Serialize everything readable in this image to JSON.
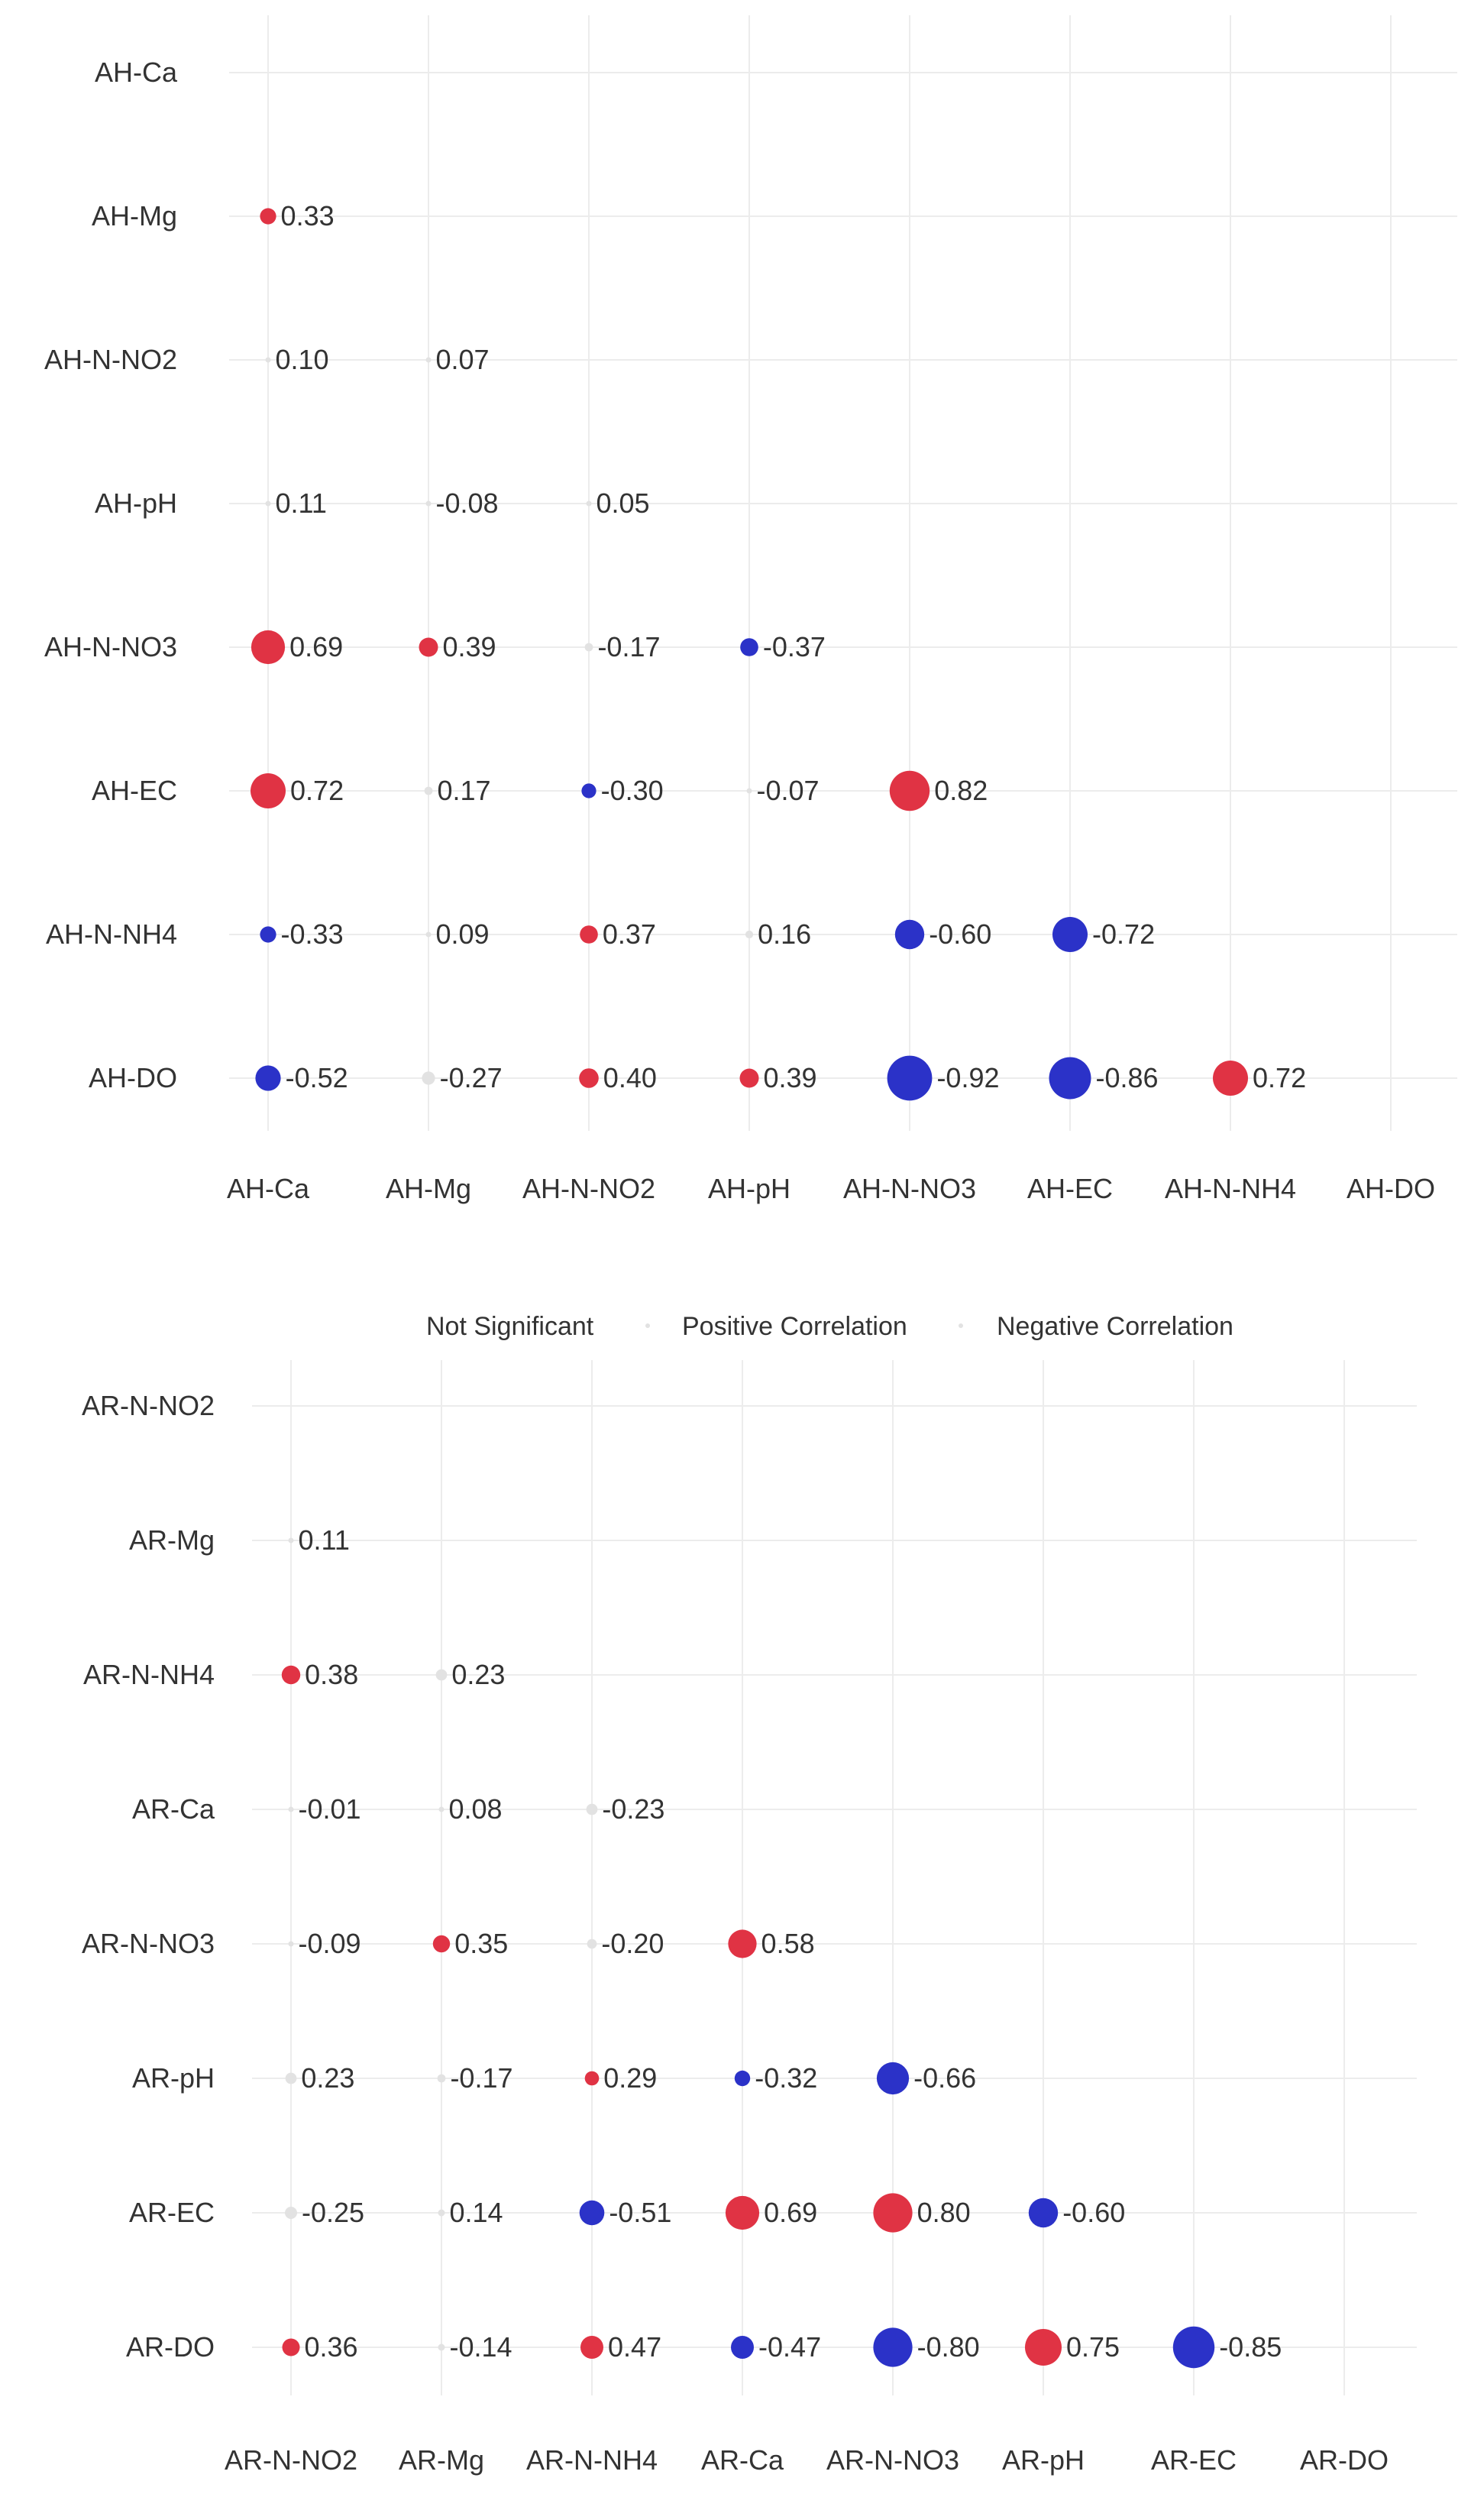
{
  "chart_data": [
    {
      "type": "bubble-correlation-matrix",
      "x_categories": [
        "AH-Ca",
        "AH-Mg",
        "AH-N-NO2",
        "AH-pH",
        "AH-N-NO3",
        "AH-EC",
        "AH-N-NH4",
        "AH-DO"
      ],
      "y_categories": [
        "AH-Ca",
        "AH-Mg",
        "AH-N-NO2",
        "AH-pH",
        "AH-N-NO3",
        "AH-EC",
        "AH-N-NH4",
        "AH-DO"
      ],
      "grid": true,
      "cells": [
        {
          "row": "AH-Mg",
          "col": "AH-Ca",
          "value": 0.33,
          "label": "0.33",
          "class": "positive"
        },
        {
          "row": "AH-N-NO2",
          "col": "AH-Ca",
          "value": 0.1,
          "label": "0.10",
          "class": "ns"
        },
        {
          "row": "AH-N-NO2",
          "col": "AH-Mg",
          "value": 0.07,
          "label": "0.07",
          "class": "ns"
        },
        {
          "row": "AH-pH",
          "col": "AH-Ca",
          "value": 0.11,
          "label": "0.11",
          "class": "ns"
        },
        {
          "row": "AH-pH",
          "col": "AH-Mg",
          "value": -0.08,
          "label": "-0.08",
          "class": "ns"
        },
        {
          "row": "AH-pH",
          "col": "AH-N-NO2",
          "value": 0.05,
          "label": "0.05",
          "class": "ns"
        },
        {
          "row": "AH-N-NO3",
          "col": "AH-Ca",
          "value": 0.69,
          "label": "0.69",
          "class": "positive"
        },
        {
          "row": "AH-N-NO3",
          "col": "AH-Mg",
          "value": 0.39,
          "label": "0.39",
          "class": "positive"
        },
        {
          "row": "AH-N-NO3",
          "col": "AH-N-NO2",
          "value": -0.17,
          "label": "-0.17",
          "class": "ns"
        },
        {
          "row": "AH-N-NO3",
          "col": "AH-pH",
          "value": -0.37,
          "label": "-0.37",
          "class": "negative"
        },
        {
          "row": "AH-EC",
          "col": "AH-Ca",
          "value": 0.72,
          "label": "0.72",
          "class": "positive"
        },
        {
          "row": "AH-EC",
          "col": "AH-Mg",
          "value": 0.17,
          "label": "0.17",
          "class": "ns"
        },
        {
          "row": "AH-EC",
          "col": "AH-N-NO2",
          "value": -0.3,
          "label": "-0.30",
          "class": "negative"
        },
        {
          "row": "AH-EC",
          "col": "AH-pH",
          "value": -0.07,
          "label": "-0.07",
          "class": "ns"
        },
        {
          "row": "AH-EC",
          "col": "AH-N-NO3",
          "value": 0.82,
          "label": "0.82",
          "class": "positive"
        },
        {
          "row": "AH-N-NH4",
          "col": "AH-Ca",
          "value": -0.33,
          "label": "-0.33",
          "class": "negative"
        },
        {
          "row": "AH-N-NH4",
          "col": "AH-Mg",
          "value": 0.09,
          "label": "0.09",
          "class": "ns"
        },
        {
          "row": "AH-N-NH4",
          "col": "AH-N-NO2",
          "value": 0.37,
          "label": "0.37",
          "class": "positive"
        },
        {
          "row": "AH-N-NH4",
          "col": "AH-pH",
          "value": 0.16,
          "label": "0.16",
          "class": "ns"
        },
        {
          "row": "AH-N-NH4",
          "col": "AH-N-NO3",
          "value": -0.6,
          "label": "-0.60",
          "class": "negative"
        },
        {
          "row": "AH-N-NH4",
          "col": "AH-EC",
          "value": -0.72,
          "label": "-0.72",
          "class": "negative"
        },
        {
          "row": "AH-DO",
          "col": "AH-Ca",
          "value": -0.52,
          "label": "-0.52",
          "class": "negative"
        },
        {
          "row": "AH-DO",
          "col": "AH-Mg",
          "value": -0.27,
          "label": "-0.27",
          "class": "ns"
        },
        {
          "row": "AH-DO",
          "col": "AH-N-NO2",
          "value": 0.4,
          "label": "0.40",
          "class": "positive"
        },
        {
          "row": "AH-DO",
          "col": "AH-pH",
          "value": 0.39,
          "label": "0.39",
          "class": "positive"
        },
        {
          "row": "AH-DO",
          "col": "AH-N-NO3",
          "value": -0.92,
          "label": "-0.92",
          "class": "negative"
        },
        {
          "row": "AH-DO",
          "col": "AH-EC",
          "value": -0.86,
          "label": "-0.86",
          "class": "negative"
        },
        {
          "row": "AH-DO",
          "col": "AH-N-NH4",
          "value": 0.72,
          "label": "0.72",
          "class": "positive"
        }
      ]
    },
    {
      "type": "bubble-correlation-matrix",
      "x_categories": [
        "AR-N-NO2",
        "AR-Mg",
        "AR-N-NH4",
        "AR-Ca",
        "AR-N-NO3",
        "AR-pH",
        "AR-EC",
        "AR-DO"
      ],
      "y_categories": [
        "AR-N-NO2",
        "AR-Mg",
        "AR-N-NH4",
        "AR-Ca",
        "AR-N-NO3",
        "AR-pH",
        "AR-EC",
        "AR-DO"
      ],
      "grid": true,
      "cells": [
        {
          "row": "AR-Mg",
          "col": "AR-N-NO2",
          "value": 0.11,
          "label": "0.11",
          "class": "ns"
        },
        {
          "row": "AR-N-NH4",
          "col": "AR-N-NO2",
          "value": 0.38,
          "label": "0.38",
          "class": "positive"
        },
        {
          "row": "AR-N-NH4",
          "col": "AR-Mg",
          "value": 0.23,
          "label": "0.23",
          "class": "ns"
        },
        {
          "row": "AR-Ca",
          "col": "AR-N-NO2",
          "value": -0.01,
          "label": "-0.01",
          "class": "ns"
        },
        {
          "row": "AR-Ca",
          "col": "AR-Mg",
          "value": 0.08,
          "label": "0.08",
          "class": "ns"
        },
        {
          "row": "AR-Ca",
          "col": "AR-N-NH4",
          "value": -0.23,
          "label": "-0.23",
          "class": "ns"
        },
        {
          "row": "AR-N-NO3",
          "col": "AR-N-NO2",
          "value": -0.09,
          "label": "-0.09",
          "class": "ns"
        },
        {
          "row": "AR-N-NO3",
          "col": "AR-Mg",
          "value": 0.35,
          "label": "0.35",
          "class": "positive"
        },
        {
          "row": "AR-N-NO3",
          "col": "AR-N-NH4",
          "value": -0.2,
          "label": "-0.20",
          "class": "ns"
        },
        {
          "row": "AR-N-NO3",
          "col": "AR-Ca",
          "value": 0.58,
          "label": "0.58",
          "class": "positive"
        },
        {
          "row": "AR-pH",
          "col": "AR-N-NO2",
          "value": 0.23,
          "label": "0.23",
          "class": "ns"
        },
        {
          "row": "AR-pH",
          "col": "AR-Mg",
          "value": -0.17,
          "label": "-0.17",
          "class": "ns"
        },
        {
          "row": "AR-pH",
          "col": "AR-N-NH4",
          "value": 0.29,
          "label": "0.29",
          "class": "positive"
        },
        {
          "row": "AR-pH",
          "col": "AR-Ca",
          "value": -0.32,
          "label": "-0.32",
          "class": "negative"
        },
        {
          "row": "AR-pH",
          "col": "AR-N-NO3",
          "value": -0.66,
          "label": "-0.66",
          "class": "negative"
        },
        {
          "row": "AR-EC",
          "col": "AR-N-NO2",
          "value": -0.25,
          "label": "-0.25",
          "class": "ns"
        },
        {
          "row": "AR-EC",
          "col": "AR-Mg",
          "value": 0.14,
          "label": "0.14",
          "class": "ns"
        },
        {
          "row": "AR-EC",
          "col": "AR-N-NH4",
          "value": -0.51,
          "label": "-0.51",
          "class": "negative"
        },
        {
          "row": "AR-EC",
          "col": "AR-Ca",
          "value": 0.69,
          "label": "0.69",
          "class": "positive"
        },
        {
          "row": "AR-EC",
          "col": "AR-N-NO3",
          "value": 0.8,
          "label": "0.80",
          "class": "positive"
        },
        {
          "row": "AR-EC",
          "col": "AR-pH",
          "value": -0.6,
          "label": "-0.60",
          "class": "negative"
        },
        {
          "row": "AR-DO",
          "col": "AR-N-NO2",
          "value": 0.36,
          "label": "0.36",
          "class": "positive"
        },
        {
          "row": "AR-DO",
          "col": "AR-Mg",
          "value": -0.14,
          "label": "-0.14",
          "class": "ns"
        },
        {
          "row": "AR-DO",
          "col": "AR-N-NH4",
          "value": 0.47,
          "label": "0.47",
          "class": "positive"
        },
        {
          "row": "AR-DO",
          "col": "AR-Ca",
          "value": -0.47,
          "label": "-0.47",
          "class": "negative"
        },
        {
          "row": "AR-DO",
          "col": "AR-N-NO3",
          "value": -0.8,
          "label": "-0.80",
          "class": "negative"
        },
        {
          "row": "AR-DO",
          "col": "AR-pH",
          "value": 0.75,
          "label": "0.75",
          "class": "positive"
        },
        {
          "row": "AR-DO",
          "col": "AR-EC",
          "value": -0.85,
          "label": "-0.85",
          "class": "negative"
        }
      ]
    }
  ],
  "legend": {
    "placement": "between-panels",
    "items": [
      {
        "key": "ns",
        "label": "Not Significant"
      },
      {
        "key": "positive",
        "label": "Positive Correlation"
      },
      {
        "key": "negative",
        "label": "Negative Correlation"
      }
    ]
  },
  "colors": {
    "positive": "#e03344",
    "negative": "#2b32c8",
    "ns": "#e2e2e2",
    "grid": "#ececec",
    "text": "#333333"
  }
}
